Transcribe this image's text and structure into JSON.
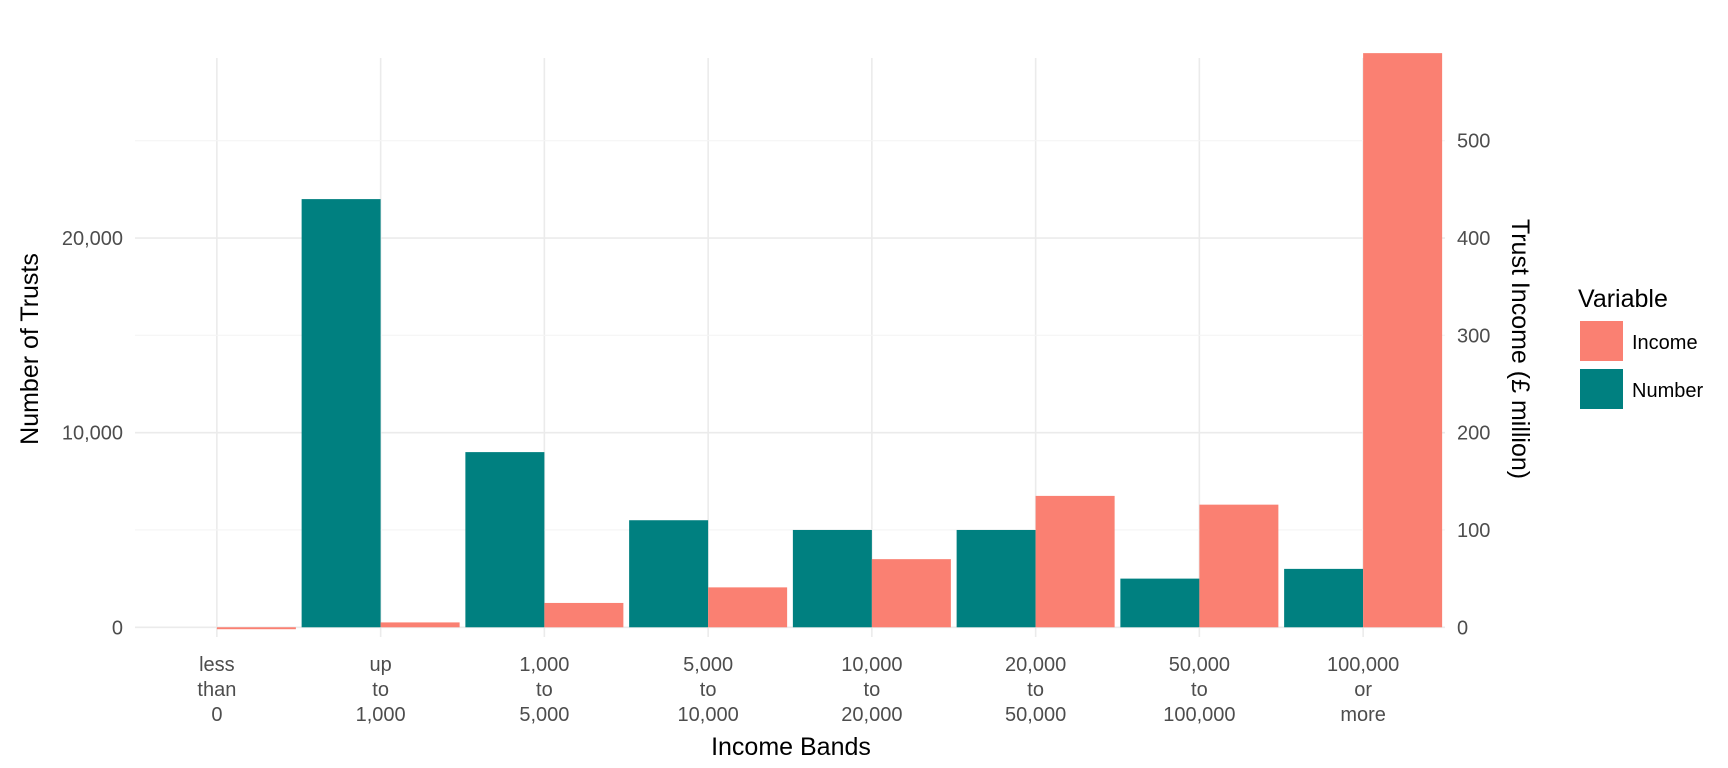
{
  "chart_data": {
    "type": "bar",
    "xlabel": "Income Bands",
    "ylabel": "Number of Trusts",
    "y2label": "Trust Income (£ million)",
    "categories": [
      [
        "less",
        "than",
        "0"
      ],
      [
        "up",
        "to",
        "1,000"
      ],
      [
        "1,000",
        "to",
        "5,000"
      ],
      [
        "5,000",
        "to",
        "10,000"
      ],
      [
        "10,000",
        "to",
        "20,000"
      ],
      [
        "20,000",
        "to",
        "50,000"
      ],
      [
        "50,000",
        "to",
        "100,000"
      ],
      [
        "100,000",
        "or",
        "more"
      ]
    ],
    "series": [
      {
        "name": "Number",
        "axis": "left",
        "color": "#008080",
        "values": [
          0,
          22000,
          9000,
          5500,
          5000,
          5000,
          2500,
          3000
        ]
      },
      {
        "name": "Income",
        "axis": "right",
        "color": "#fa8072",
        "values": [
          -2,
          5,
          25,
          41,
          70,
          135,
          126,
          590
        ]
      }
    ],
    "ylim": [
      -500,
      29250
    ],
    "y2lim": [
      -10,
      585
    ],
    "yticks": [
      0,
      10000,
      20000
    ],
    "yticklabels": [
      "0",
      "10,000",
      "20,000"
    ],
    "y2ticks": [
      0,
      100,
      200,
      300,
      400,
      500
    ],
    "y2ticklabels": [
      "0",
      "100",
      "200",
      "300",
      "400",
      "500"
    ],
    "grid": true,
    "legend": {
      "title": "Variable",
      "placement": "right",
      "entries": [
        {
          "label": "Income",
          "color": "#fa8072"
        },
        {
          "label": "Number",
          "color": "#008080"
        }
      ]
    }
  }
}
